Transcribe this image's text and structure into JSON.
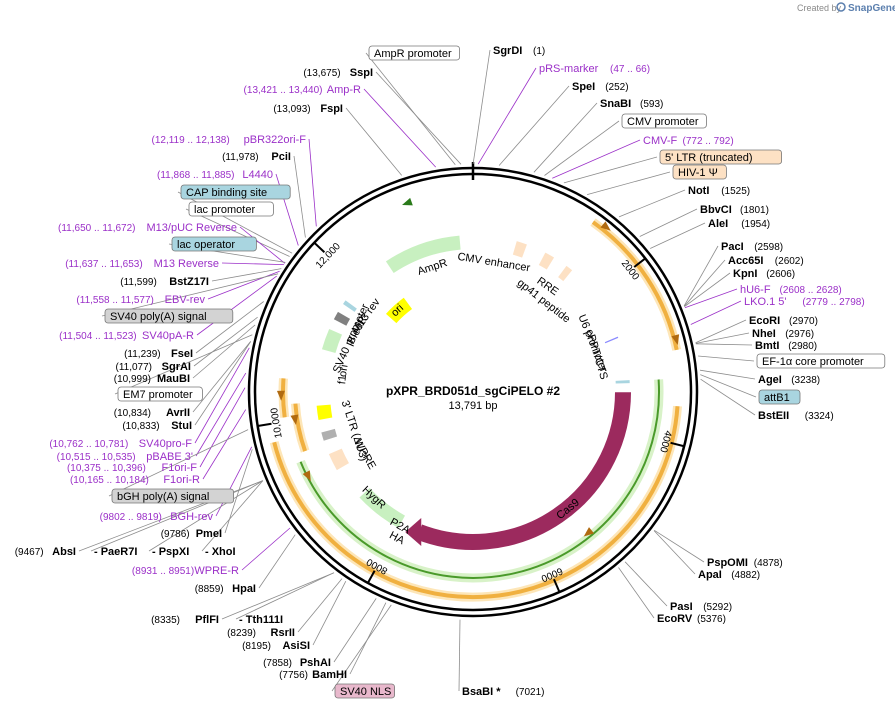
{
  "brand": {
    "created_by": "Created by",
    "name": "SnapGene"
  },
  "plasmid": {
    "name": "pXPR_BRD051d_sgCiPELO #2",
    "size": "13,791 bp",
    "length": 13791
  },
  "ticks": [
    "2000",
    "4000",
    "6000",
    "8000",
    "10,000",
    "12,000"
  ],
  "labels": [
    {
      "id": "ampr-promoter",
      "kind": "box",
      "box": "#ffffff",
      "text": "AmpR promoter",
      "pos": ""
    },
    {
      "id": "sgrdi",
      "kind": "enzyme",
      "text": "SgrDI",
      "pos": "(1)"
    },
    {
      "id": "sspi",
      "kind": "enzyme",
      "text": "SspI",
      "pos": "(13,675)"
    },
    {
      "id": "prs-marker",
      "kind": "primer",
      "text": "pRS-marker",
      "pos": "(47 .. 66)"
    },
    {
      "id": "amp-r",
      "kind": "primer",
      "text": "Amp-R",
      "pos": "(13,421 .. 13,440)"
    },
    {
      "id": "spei",
      "kind": "enzyme",
      "text": "SpeI",
      "pos": "(252)"
    },
    {
      "id": "fspi",
      "kind": "enzyme",
      "text": "FspI",
      "pos": "(13,093)"
    },
    {
      "id": "snabi",
      "kind": "enzyme",
      "text": "SnaBI",
      "pos": "(593)"
    },
    {
      "id": "cmv-promoter",
      "kind": "box",
      "box": "#ffffff",
      "text": "CMV promoter",
      "pos": ""
    },
    {
      "id": "pbr322ori-f",
      "kind": "primer",
      "text": "pBR322ori-F",
      "pos": "(12,119 .. 12,138)"
    },
    {
      "id": "cmv-f",
      "kind": "primer",
      "text": "CMV-F",
      "pos": "(772 .. 792)"
    },
    {
      "id": "pcii",
      "kind": "enzyme",
      "text": "PciI",
      "pos": "(11,978)"
    },
    {
      "id": "ltr5",
      "kind": "box",
      "box": "#fde1c4",
      "text": "5' LTR (truncated)",
      "pos": ""
    },
    {
      "id": "l4440",
      "kind": "primer",
      "text": "L4440",
      "pos": "(11,868 .. 11,885)"
    },
    {
      "id": "hiv1",
      "kind": "box",
      "box": "#fde1c4",
      "text": "HIV-1 Ψ",
      "pos": ""
    },
    {
      "id": "cap-site",
      "kind": "box",
      "box": "#a9d5e0",
      "text": "CAP binding site",
      "pos": ""
    },
    {
      "id": "noti",
      "kind": "enzyme",
      "text": "NotI",
      "pos": "(1525)"
    },
    {
      "id": "lac-promoter",
      "kind": "box",
      "box": "#ffffff",
      "text": "lac promoter",
      "pos": ""
    },
    {
      "id": "bbvci",
      "kind": "enzyme",
      "text": "BbvCI",
      "pos": "(1801)"
    },
    {
      "id": "alei",
      "kind": "enzyme",
      "text": "AleI",
      "pos": "(1954)"
    },
    {
      "id": "m13puc-rev",
      "kind": "primer",
      "text": "M13/pUC Reverse",
      "pos": "(11,650 .. 11,672)"
    },
    {
      "id": "lac-operator",
      "kind": "box",
      "box": "#a9d5e0",
      "text": "lac operator",
      "pos": ""
    },
    {
      "id": "paci",
      "kind": "enzyme",
      "text": "PacI",
      "pos": "(2598)"
    },
    {
      "id": "acc65i",
      "kind": "enzyme",
      "text": "Acc65I",
      "pos": "(2602)"
    },
    {
      "id": "m13-rev",
      "kind": "primer",
      "text": "M13 Reverse",
      "pos": "(11,637 .. 11,653)"
    },
    {
      "id": "kpni",
      "kind": "enzyme",
      "text": "KpnI",
      "pos": "(2606)"
    },
    {
      "id": "bstz17i",
      "kind": "enzyme",
      "text": "BstZ17I",
      "pos": "(11,599)"
    },
    {
      "id": "hu6-f",
      "kind": "primer",
      "text": "hU6-F",
      "pos": "(2608 .. 2628)"
    },
    {
      "id": "ebv-rev",
      "kind": "primer",
      "text": "EBV-rev",
      "pos": "(11,558 .. 11,577)"
    },
    {
      "id": "lko1",
      "kind": "primer",
      "text": "LKO.1 5'",
      "pos": "(2779 .. 2798)"
    },
    {
      "id": "sv40polya",
      "kind": "box",
      "box": "#d3d3d3",
      "text": "SV40 poly(A) signal",
      "pos": ""
    },
    {
      "id": "ecori",
      "kind": "enzyme",
      "text": "EcoRI",
      "pos": "(2970)"
    },
    {
      "id": "nhei",
      "kind": "enzyme",
      "text": "NheI",
      "pos": "(2976)"
    },
    {
      "id": "sv40pa-r",
      "kind": "primer",
      "text": "SV40pA-R",
      "pos": "(11,504 .. 11,523)"
    },
    {
      "id": "bmti",
      "kind": "enzyme",
      "text": "BmtI",
      "pos": "(2980)"
    },
    {
      "id": "fsei",
      "kind": "enzyme",
      "text": "FseI",
      "pos": "(11,239)"
    },
    {
      "id": "sgrai",
      "kind": "enzyme",
      "text": "SgrAI",
      "pos": "(11,077)"
    },
    {
      "id": "ef1a",
      "kind": "box",
      "box": "#ffffff",
      "text": "EF-1α core promoter",
      "pos": ""
    },
    {
      "id": "maubi",
      "kind": "enzyme",
      "text": "MauBI",
      "pos": "(10,999)"
    },
    {
      "id": "agei",
      "kind": "enzyme",
      "text": "AgeI",
      "pos": "(3238)"
    },
    {
      "id": "em7",
      "kind": "box",
      "box": "#ffffff",
      "text": "EM7 promoter",
      "pos": ""
    },
    {
      "id": "attb1",
      "kind": "box",
      "box": "#a9d5e0",
      "text": "attB1",
      "pos": ""
    },
    {
      "id": "avrii",
      "kind": "enzyme",
      "text": "AvrII",
      "pos": "(10,834)"
    },
    {
      "id": "bsteii",
      "kind": "enzyme",
      "text": "BstEII",
      "pos": "(3324)"
    },
    {
      "id": "stui",
      "kind": "enzyme",
      "text": "StuI",
      "pos": "(10,833)"
    },
    {
      "id": "sv40pro-f",
      "kind": "primer",
      "text": "SV40pro-F",
      "pos": "(10,762 .. 10,781)"
    },
    {
      "id": "pbabe3",
      "kind": "primer",
      "text": "pBABE 3'",
      "pos": "(10,515 .. 10,535)"
    },
    {
      "id": "f1ori-f",
      "kind": "primer",
      "text": "F1ori-F",
      "pos": "(10,375 .. 10,396)"
    },
    {
      "id": "f1ori-r",
      "kind": "primer",
      "text": "F1ori-R",
      "pos": "(10,165 .. 10,184)"
    },
    {
      "id": "bgh-polya",
      "kind": "box",
      "box": "#d3d3d3",
      "text": "bGH poly(A) signal",
      "pos": ""
    },
    {
      "id": "bgh-rev",
      "kind": "primer",
      "text": "BGH-rev",
      "pos": "(9802 .. 9819)"
    },
    {
      "id": "pmei",
      "kind": "enzyme",
      "text": "PmeI",
      "pos": "(9786)"
    },
    {
      "id": "absi",
      "kind": "enzyme",
      "text": "AbsI",
      "pos": "(9467)"
    },
    {
      "id": "paer7i",
      "kind": "enzyme",
      "text": "PaeR7I",
      "pos": ""
    },
    {
      "id": "pspxi",
      "kind": "enzyme",
      "text": "PspXI",
      "pos": ""
    },
    {
      "id": "xhoi",
      "kind": "enzyme",
      "text": "XhoI",
      "pos": ""
    },
    {
      "id": "wpre-r",
      "kind": "primer",
      "text": "WPRE-R",
      "pos": "(8931 .. 8951)"
    },
    {
      "id": "hpai",
      "kind": "enzyme",
      "text": "HpaI",
      "pos": "(8859)"
    },
    {
      "id": "pspomi",
      "kind": "enzyme",
      "text": "PspOMI",
      "pos": "(4878)"
    },
    {
      "id": "apai",
      "kind": "enzyme",
      "text": "ApaI",
      "pos": "(4882)"
    },
    {
      "id": "pasi",
      "kind": "enzyme",
      "text": "PasI",
      "pos": "(5292)"
    },
    {
      "id": "ecorv",
      "kind": "enzyme",
      "text": "EcoRV",
      "pos": "(5376)"
    },
    {
      "id": "pflfi",
      "kind": "enzyme",
      "text": "PflFI",
      "pos": "(8335)"
    },
    {
      "id": "tth111i",
      "kind": "enzyme",
      "text": "Tth111I",
      "pos": ""
    },
    {
      "id": "rsrii",
      "kind": "enzyme",
      "text": "RsrII",
      "pos": "(8239)"
    },
    {
      "id": "asisi",
      "kind": "enzyme",
      "text": "AsiSI",
      "pos": "(8195)"
    },
    {
      "id": "pshai",
      "kind": "enzyme",
      "text": "PshAI",
      "pos": "(7858)"
    },
    {
      "id": "bamhi",
      "kind": "enzyme",
      "text": "BamHI",
      "pos": "(7756)"
    },
    {
      "id": "sv40nls",
      "kind": "box",
      "box": "#e8b8cc",
      "text": "SV40 NLS",
      "pos": ""
    },
    {
      "id": "bsabi",
      "kind": "enzyme",
      "text": "BsaBI *",
      "pos": "(7021)"
    }
  ],
  "features": [
    {
      "id": "ampr",
      "text": "AmpR"
    },
    {
      "id": "cmv-enh",
      "text": "CMV enhancer"
    },
    {
      "id": "rre",
      "text": "RRE"
    },
    {
      "id": "gp41",
      "text": "gp41 peptide"
    },
    {
      "id": "u6",
      "text": "U6 promoter"
    },
    {
      "id": "cppt",
      "text": "cPPT/CTS"
    },
    {
      "id": "cas9",
      "text": "Cas9"
    },
    {
      "id": "ha",
      "text": "HA"
    },
    {
      "id": "p2a",
      "text": "P2A"
    },
    {
      "id": "hygr",
      "text": "HygR"
    },
    {
      "id": "wpre",
      "text": "WPRE"
    },
    {
      "id": "ltr3",
      "text": "3' LTR (ΔU3)"
    },
    {
      "id": "f1",
      "text": "f1"
    },
    {
      "id": "ori2",
      "text": "ori"
    },
    {
      "id": "sv40p",
      "text": "SV40 promoter"
    },
    {
      "id": "bleor",
      "text": "BleoR"
    },
    {
      "id": "m13rev-f",
      "text": "M13 rev"
    },
    {
      "id": "ori",
      "text": "ori"
    }
  ],
  "colors": {
    "primer": "#9b30c8",
    "green": "#c8f0c0",
    "orange": "#f0b040",
    "cas9": "#9c2a5e"
  }
}
